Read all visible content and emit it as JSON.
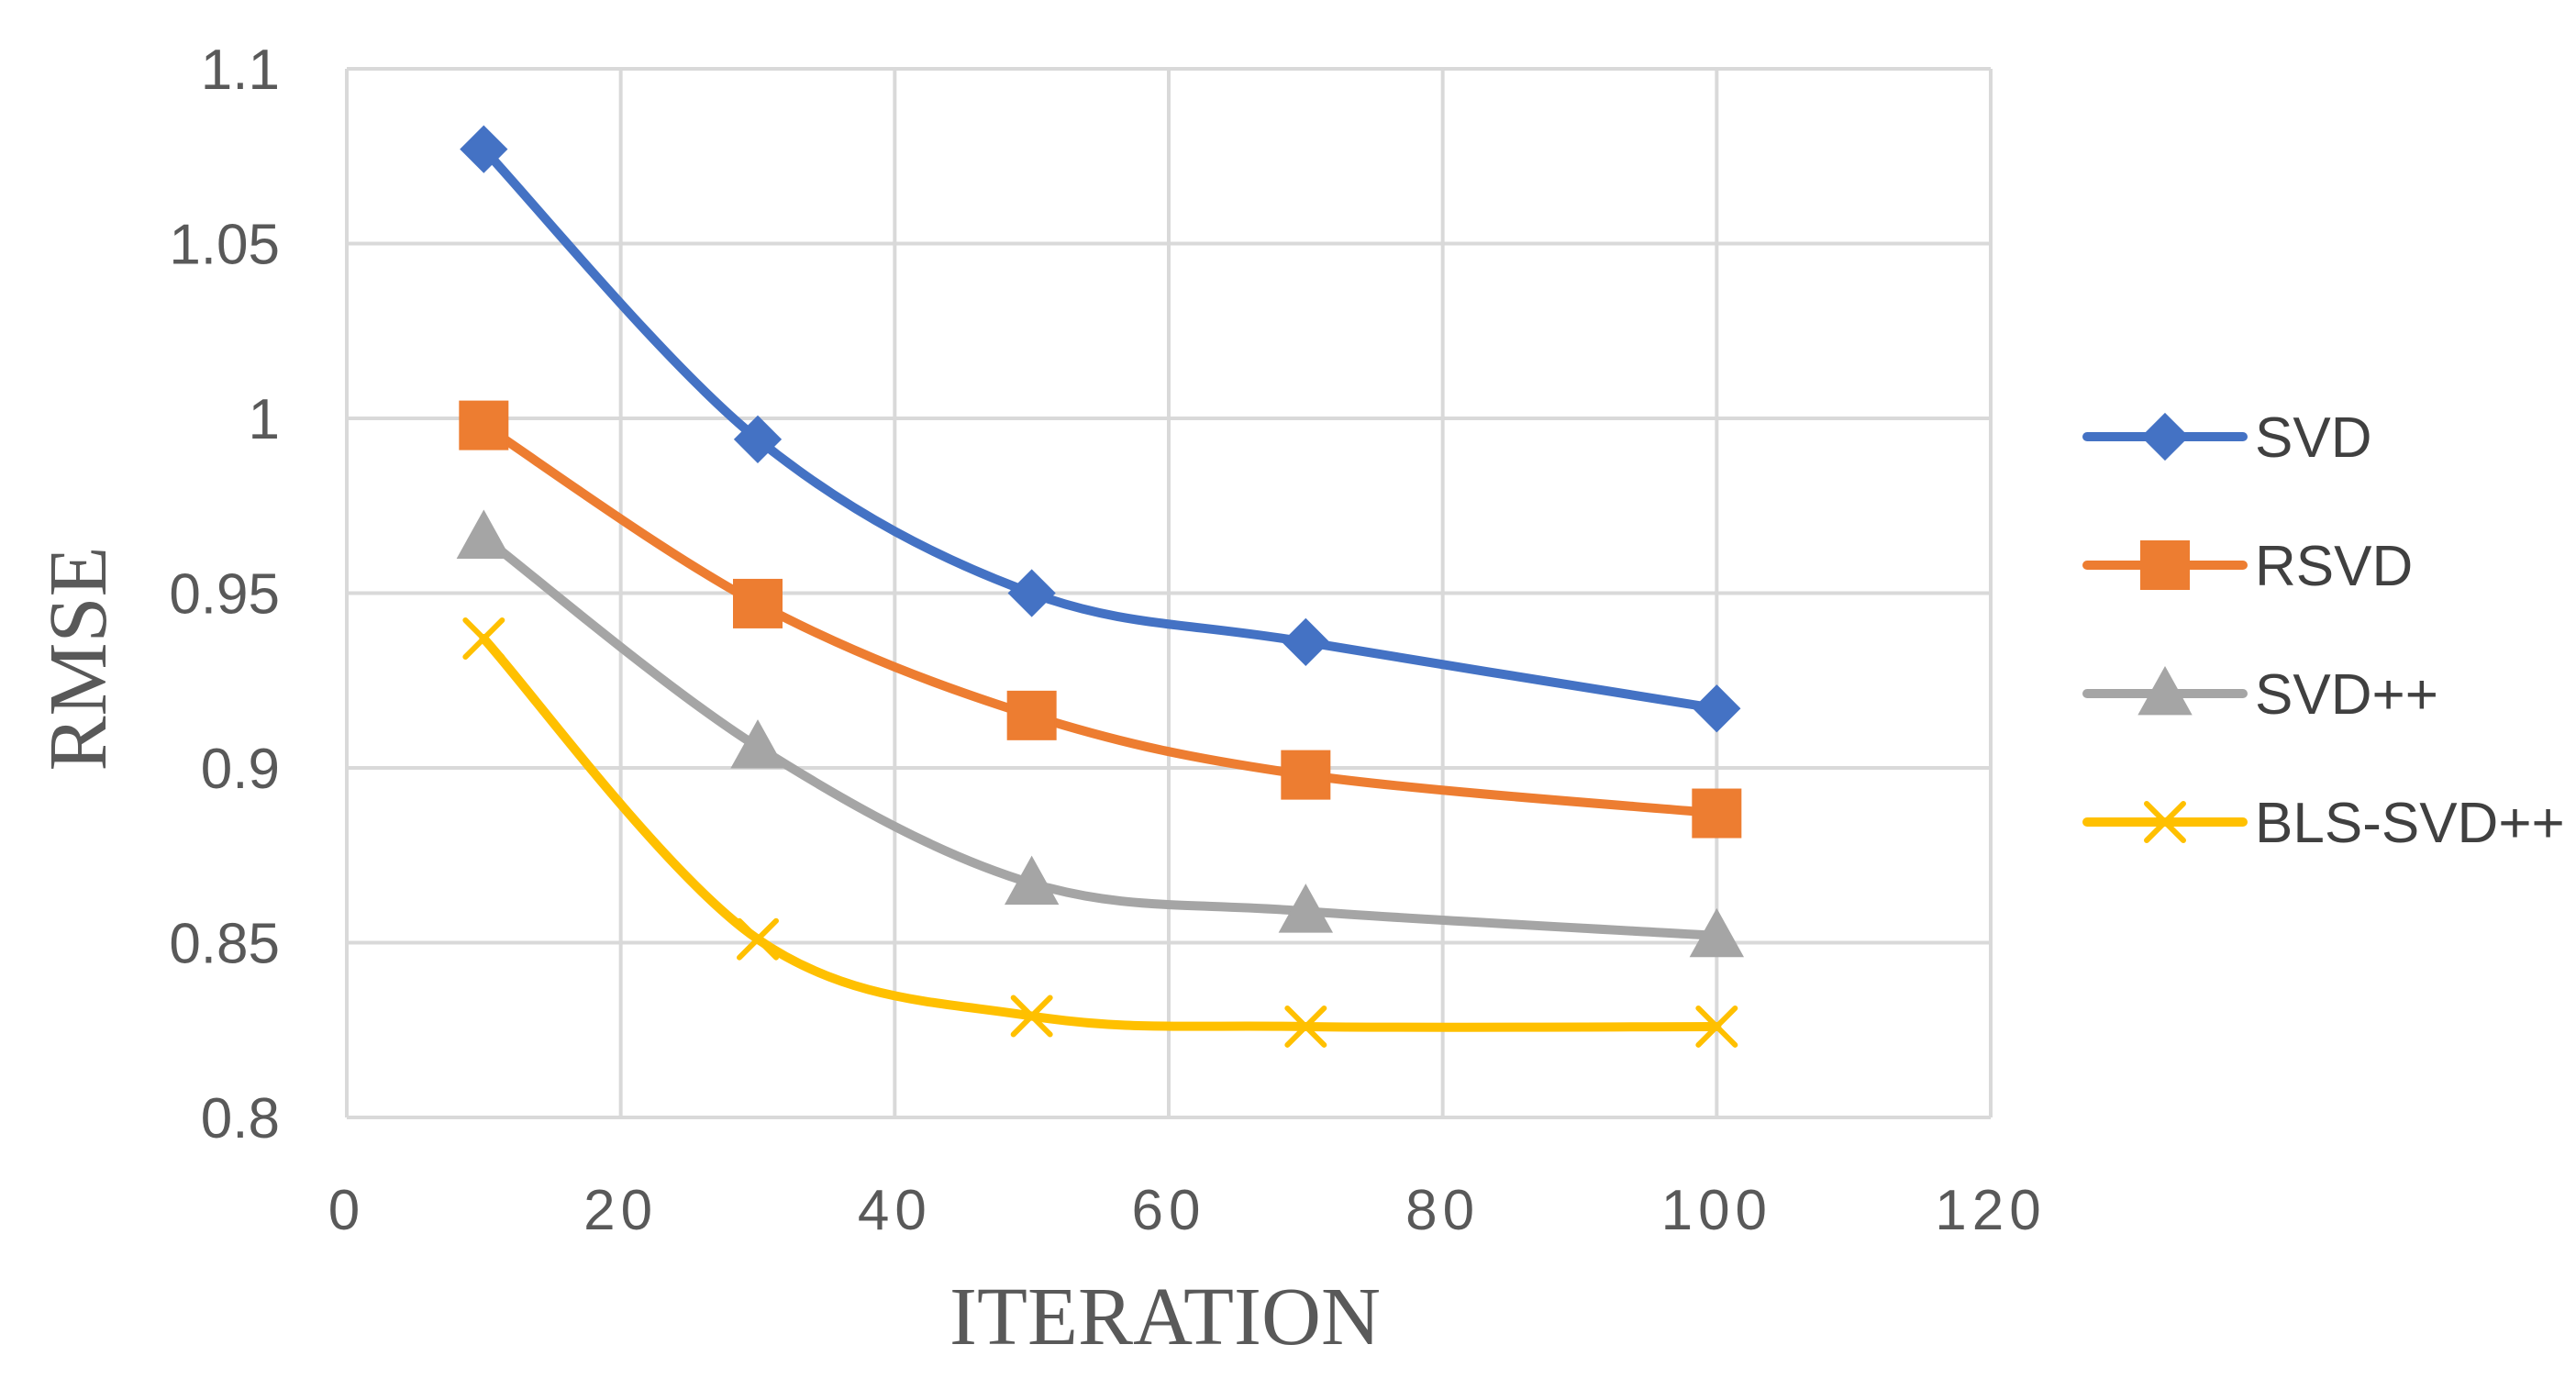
{
  "chart_data": {
    "type": "line",
    "title": "",
    "xlabel": "ITERATION",
    "ylabel": "RMSE",
    "xlim": [
      0,
      120
    ],
    "ylim": [
      0.8,
      1.1
    ],
    "xticks": [
      0,
      20,
      40,
      60,
      80,
      100,
      120
    ],
    "yticks": [
      "0.8",
      "0.85",
      "0.9",
      "0.95",
      "1",
      "1.05",
      "1.1"
    ],
    "grid": true,
    "legend_position": "right",
    "smooth": true,
    "x": [
      10,
      30,
      50,
      70,
      100
    ],
    "series": [
      {
        "name": "SVD",
        "values": [
          1.077,
          0.994,
          0.95,
          0.936,
          0.917
        ],
        "color": "#4472C4",
        "marker": "diamond"
      },
      {
        "name": "RSVD",
        "values": [
          0.998,
          0.947,
          0.915,
          0.898,
          0.887
        ],
        "color": "#ED7D31",
        "marker": "square"
      },
      {
        "name": "SVD++",
        "values": [
          0.966,
          0.906,
          0.867,
          0.859,
          0.852
        ],
        "color": "#A5A5A5",
        "marker": "triangle"
      },
      {
        "name": "BLS-SVD++",
        "values": [
          0.937,
          0.851,
          0.829,
          0.826,
          0.826
        ],
        "color": "#FFC000",
        "marker": "x"
      }
    ]
  }
}
